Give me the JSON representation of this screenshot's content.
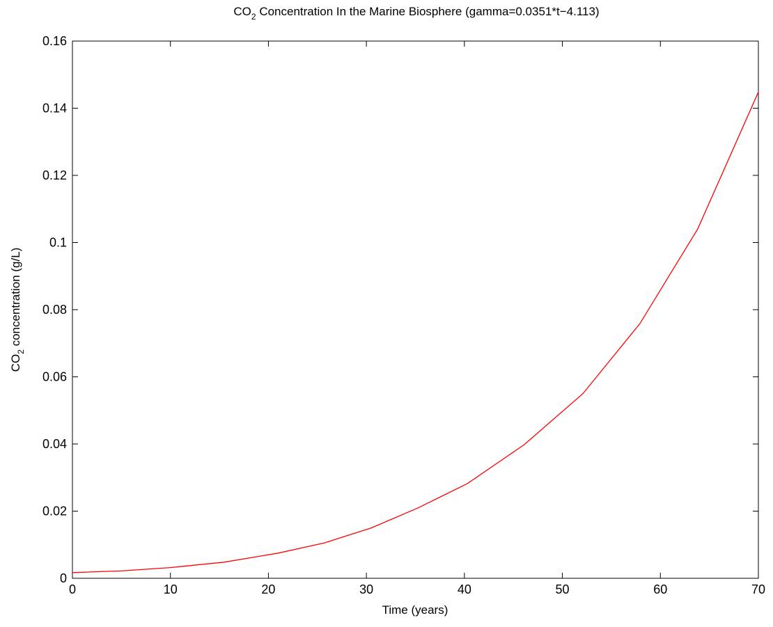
{
  "chart_data": {
    "type": "line",
    "title_main": "CO",
    "title_sub": "2",
    "title_rest": " Concentration In the Marine Biosphere (gamma=0.0351*t−4.113)",
    "xlabel": "Time (years)",
    "ylabel_main": "CO",
    "ylabel_sub": "2",
    "ylabel_rest": " concentration (g/L)",
    "xlim": [
      0,
      70
    ],
    "ylim": [
      0,
      0.16
    ],
    "xticks": [
      0,
      10,
      20,
      30,
      40,
      50,
      60,
      70
    ],
    "yticks": [
      0,
      0.02,
      0.04,
      0.06,
      0.08,
      0.1,
      0.12,
      0.14,
      0.16
    ],
    "xtick_labels": [
      "0",
      "10",
      "20",
      "30",
      "40",
      "50",
      "60",
      "70"
    ],
    "ytick_labels": [
      "0",
      "0.02",
      "0.04",
      "0.06",
      "0.08",
      "0.1",
      "0.12",
      "0.14",
      "0.16"
    ],
    "grid": false,
    "series": [
      {
        "color": "#ff0000",
        "x": [
          0,
          5,
          10,
          15.5,
          21,
          25.7,
          30.5,
          35.3,
          40.3,
          46.1,
          52.1,
          57.9,
          63.8,
          70
        ],
        "y": [
          0.0017,
          0.0022,
          0.0032,
          0.0048,
          0.0075,
          0.0105,
          0.015,
          0.021,
          0.0282,
          0.0398,
          0.055,
          0.0758,
          0.104,
          0.1448
        ]
      }
    ]
  }
}
